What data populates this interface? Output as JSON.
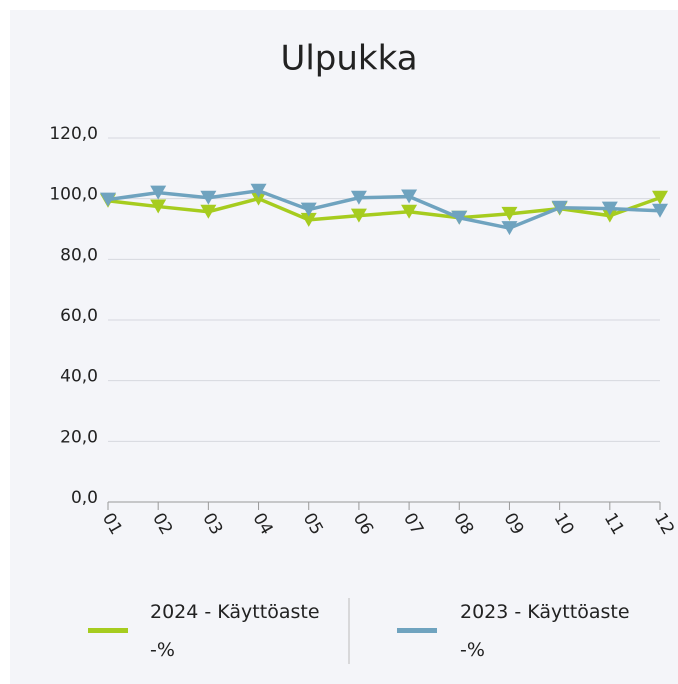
{
  "chart_data": {
    "type": "line",
    "title": "Ulpukka",
    "categories": [
      "01",
      "02",
      "03",
      "04",
      "05",
      "06",
      "07",
      "08",
      "09",
      "10",
      "11",
      "12"
    ],
    "series": [
      {
        "name": "2024 - Käyttöaste -%",
        "color": "#a6cc1f",
        "values": [
          99.3,
          97.4,
          95.7,
          100,
          93,
          94.4,
          95.7,
          93.7,
          95,
          96.7,
          94.4,
          100.3
        ]
      },
      {
        "name": "2023 - Käyttöaste -%",
        "color": "#6fa3bf",
        "values": [
          99.7,
          102,
          100.3,
          102.6,
          96.4,
          100.3,
          100.7,
          93.7,
          90.3,
          97,
          96.7,
          96
        ]
      }
    ],
    "ylim": [
      0,
      120
    ],
    "yticks": [
      {
        "value": 0,
        "label": "0,0"
      },
      {
        "value": 20,
        "label": "20,0"
      },
      {
        "value": 40,
        "label": "40,0"
      },
      {
        "value": 60,
        "label": "60,0"
      },
      {
        "value": 80,
        "label": "80,0"
      },
      {
        "value": 100,
        "label": "100,0"
      },
      {
        "value": 120,
        "label": "120,0"
      }
    ],
    "grid": true,
    "legend": "bottom"
  }
}
